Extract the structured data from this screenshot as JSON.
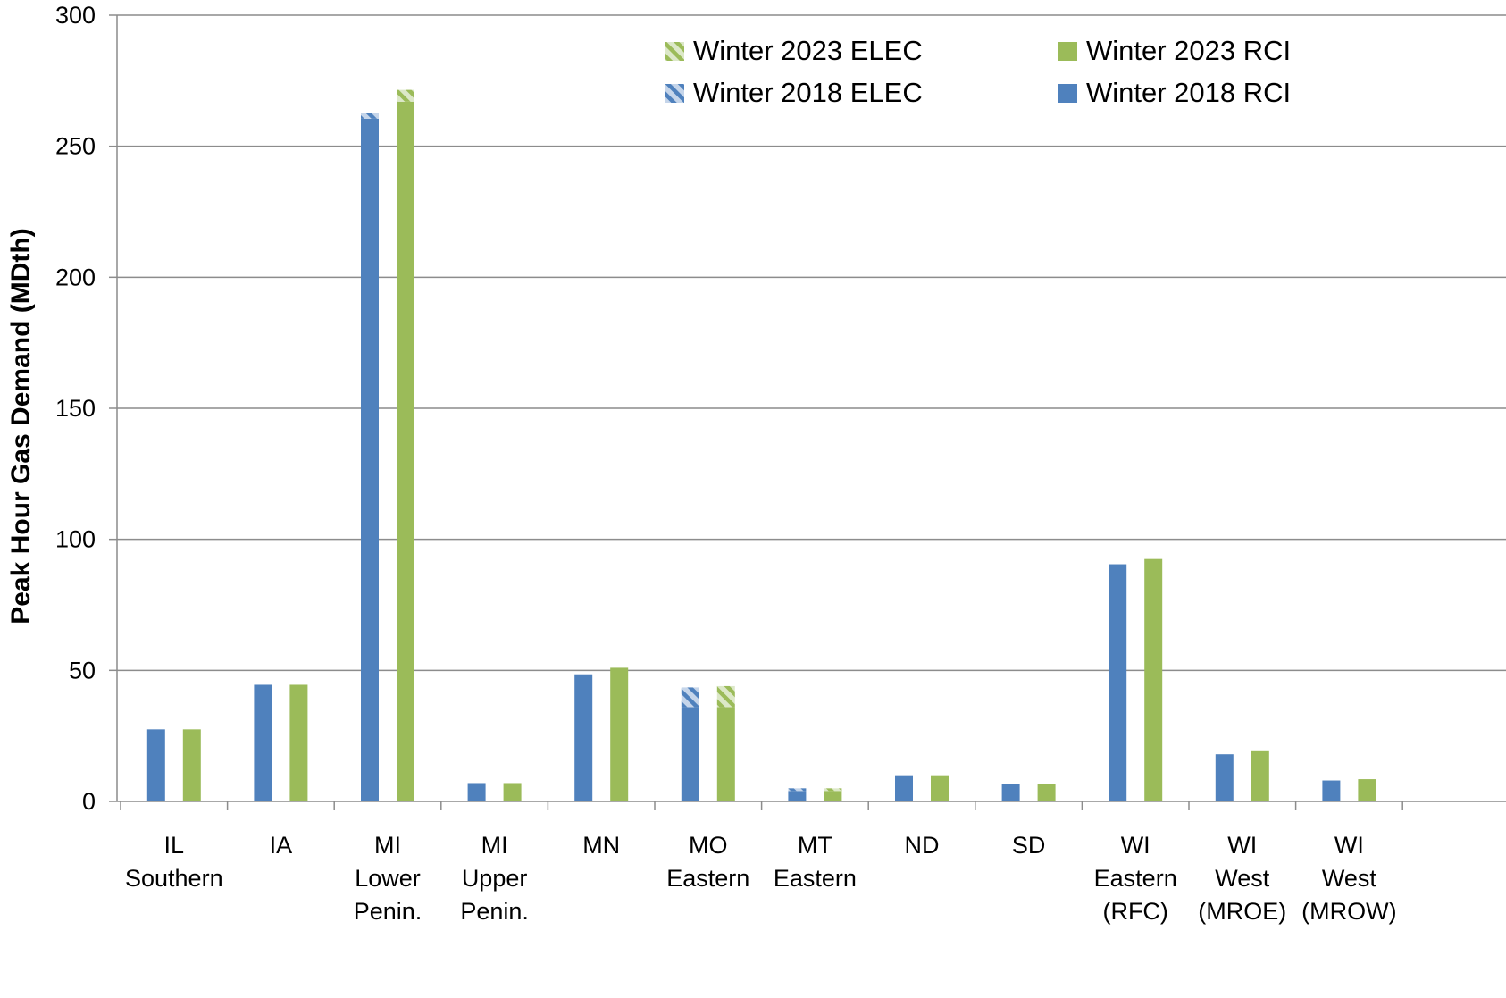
{
  "chart_data": {
    "type": "bar",
    "title": "",
    "xlabel": "",
    "ylabel": "Peak Hour Gas Demand (MDth)",
    "ylim": [
      0,
      300
    ],
    "yticks": [
      0,
      50,
      100,
      150,
      200,
      250,
      300
    ],
    "grid": true,
    "legend_position": "top-right",
    "categories": [
      [
        "IL",
        "Southern"
      ],
      [
        "IA"
      ],
      [
        "MI",
        "Lower",
        "Penin."
      ],
      [
        "MI",
        "Upper",
        "Penin."
      ],
      [
        "MN"
      ],
      [
        "MO",
        "Eastern"
      ],
      [
        "MT",
        "Eastern"
      ],
      [
        "ND"
      ],
      [
        "SD"
      ],
      [
        "WI",
        "Eastern",
        "(RFC)"
      ],
      [
        "WI",
        "West",
        "(MROE)"
      ],
      [
        "WI",
        "West",
        "(MROW)"
      ]
    ],
    "series": [
      {
        "name": "Winter 2018 RCI",
        "stack": "2018",
        "pattern": "solid",
        "values": [
          27.5,
          44.5,
          260.5,
          7,
          48.5,
          36,
          4,
          10,
          6.5,
          90.5,
          18,
          8
        ]
      },
      {
        "name": "Winter 2018 ELEC",
        "stack": "2018",
        "pattern": "hatched",
        "values": [
          0,
          0,
          2,
          0,
          0,
          7.5,
          1,
          0,
          0,
          0,
          0,
          0
        ]
      },
      {
        "name": "Winter 2023 RCI",
        "stack": "2023",
        "pattern": "solid",
        "values": [
          27.5,
          44.5,
          267,
          7,
          51,
          36,
          4,
          10,
          6.5,
          92.5,
          19.5,
          8.5
        ]
      },
      {
        "name": "Winter 2023 ELEC",
        "stack": "2023",
        "pattern": "hatched",
        "values": [
          0,
          0,
          4.5,
          0,
          0,
          8,
          1,
          0,
          0,
          0,
          0,
          0
        ]
      }
    ],
    "legend": [
      {
        "label": "Winter 2023 ELEC",
        "series": 3
      },
      {
        "label": "Winter 2023 RCI",
        "series": 2
      },
      {
        "label": "Winter 2018 ELEC",
        "series": 1
      },
      {
        "label": "Winter 2018 RCI",
        "series": 0
      }
    ],
    "colors": {
      "blue": "#4F81BD",
      "blue_hatch_bg": "#C5D5EA",
      "green": "#9BBB59",
      "green_hatch_bg": "#DCE8C8",
      "grid": "#8C8C8C",
      "axis": "#8C8C8C"
    }
  }
}
